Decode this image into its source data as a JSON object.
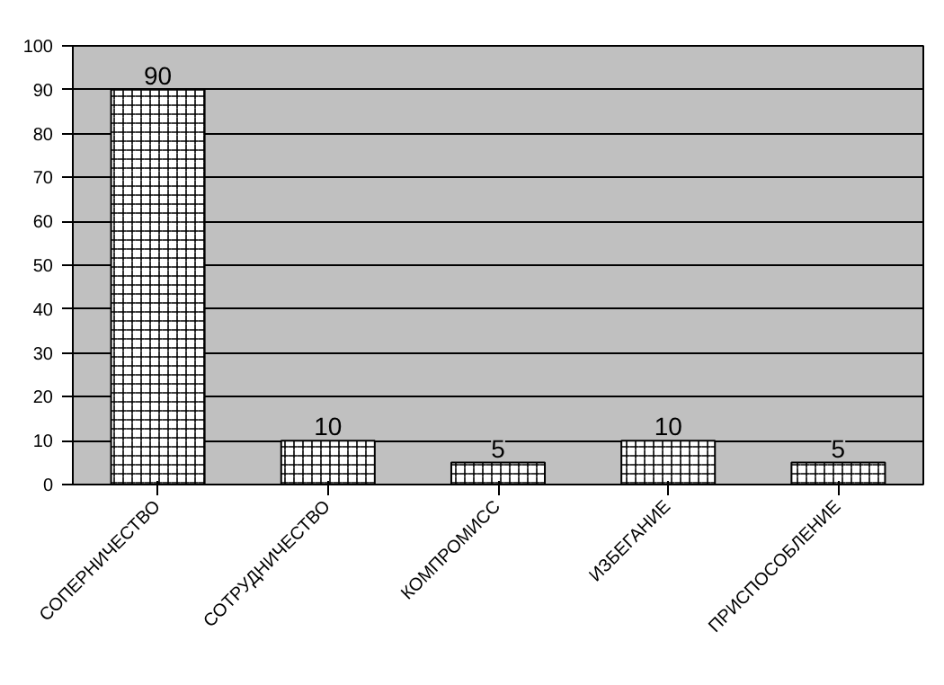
{
  "chart_data": {
    "type": "bar",
    "categories": [
      "СОПЕРНИЧЕСТВО",
      "СОТРУДНИЧЕСТВО",
      "КОМПРОМИСС",
      "ИЗБЕГАНИЕ",
      "ПРИСПОСОБЛЕНИЕ"
    ],
    "values": [
      90,
      10,
      5,
      10,
      5
    ],
    "color": "#ffffff",
    "ylim": [
      0,
      100
    ],
    "yticks": [
      0,
      10,
      20,
      30,
      40,
      50,
      60,
      70,
      80,
      90,
      100
    ],
    "grid": "y",
    "data_labels": true
  }
}
